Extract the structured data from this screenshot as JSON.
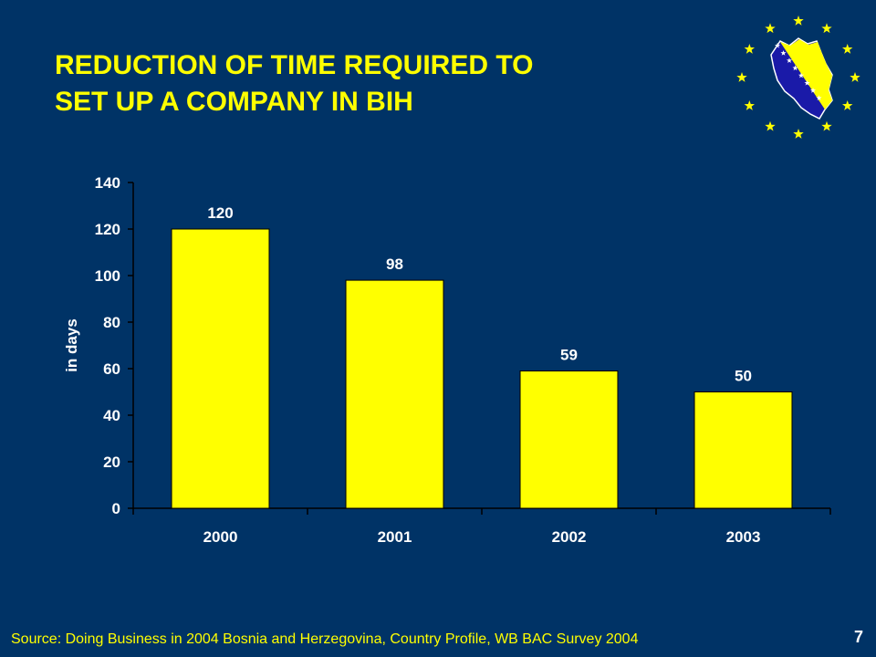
{
  "slide": {
    "title_line1": "REDUCTION OF TIME REQUIRED TO",
    "title_line2": "SET UP A COMPANY IN BIH",
    "source": "Source: Doing Business in 2004 Bosnia and Herzegovina, Country Profile, WB BAC Survey 2004",
    "page_number": "7",
    "logo_icon": "eu-stars-bih-map-icon"
  },
  "colors": {
    "background": "#003366",
    "bar": "#FFFF00",
    "title": "#FFFF00",
    "text": "#FFFFFF",
    "star": "#FFFF00",
    "map_blue": "#1A1AA8"
  },
  "chart_data": {
    "type": "bar",
    "categories": [
      "2000",
      "2001",
      "2002",
      "2003"
    ],
    "values": [
      120,
      98,
      59,
      50
    ],
    "ylabel": "in days",
    "xlabel": "",
    "ylim": [
      0,
      140
    ],
    "yticks": [
      0,
      20,
      40,
      60,
      80,
      100,
      120,
      140
    ],
    "data_labels": [
      "120",
      "98",
      "59",
      "50"
    ],
    "grid": false,
    "legend": "none"
  }
}
